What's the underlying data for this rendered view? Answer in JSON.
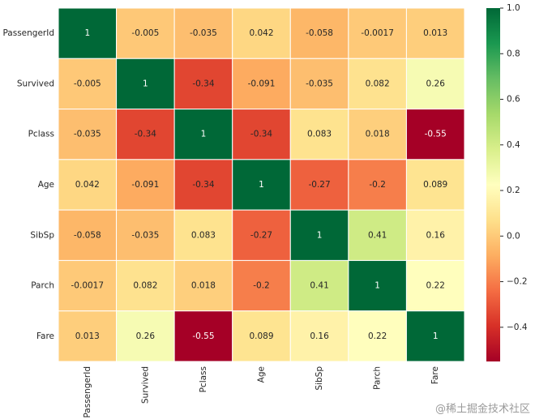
{
  "chart_data": {
    "type": "heatmap",
    "x_categories": [
      "PassengerId",
      "Survived",
      "Pclass",
      "Age",
      "SibSp",
      "Parch",
      "Fare"
    ],
    "y_categories": [
      "PassengerId",
      "Survived",
      "Pclass",
      "Age",
      "SibSp",
      "Parch",
      "Fare"
    ],
    "values": [
      [
        1,
        -0.005,
        -0.035,
        0.042,
        -0.058,
        -0.0017,
        0.013
      ],
      [
        -0.005,
        1,
        -0.34,
        -0.091,
        -0.035,
        0.082,
        0.26
      ],
      [
        -0.035,
        -0.34,
        1,
        -0.34,
        0.083,
        0.018,
        -0.55
      ],
      [
        0.042,
        -0.091,
        -0.34,
        1,
        -0.27,
        -0.2,
        0.089
      ],
      [
        -0.058,
        -0.035,
        0.083,
        -0.27,
        1,
        0.41,
        0.16
      ],
      [
        -0.0017,
        0.082,
        0.018,
        -0.2,
        0.41,
        1,
        0.22
      ],
      [
        0.013,
        0.26,
        -0.55,
        0.089,
        0.16,
        0.22,
        1
      ]
    ],
    "colorscale": [
      "#a50026",
      "#d73027",
      "#f46d43",
      "#fdae61",
      "#fee08b",
      "#ffffbf",
      "#d9ef8b",
      "#a6d96a",
      "#66bd63",
      "#1a9850",
      "#006837"
    ],
    "vlim": [
      -0.55,
      1
    ],
    "colorbar_ticks": [
      {
        "value": 1,
        "label": "1.0"
      },
      0.8,
      0.6,
      0.4,
      0.2,
      {
        "value": 0,
        "label": "0.0"
      },
      {
        "value": -0.2,
        "label": "−0.2"
      },
      {
        "value": -0.4,
        "label": "−0.4"
      }
    ],
    "watermark": "@稀土掘金技术社区"
  }
}
